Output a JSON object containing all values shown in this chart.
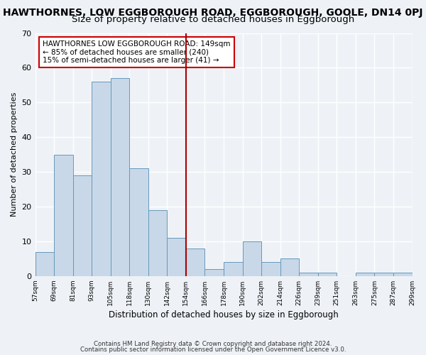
{
  "title": "HAWTHORNES, LOW EGGBOROUGH ROAD, EGGBOROUGH, GOOLE, DN14 0PJ",
  "subtitle": "Size of property relative to detached houses in Eggborough",
  "xlabel": "Distribution of detached houses by size in Eggborough",
  "ylabel": "Number of detached properties",
  "bar_color": "#c8d8e8",
  "bar_edge_color": "#6699bb",
  "vline_color": "#aa0000",
  "vline_pos": 7.5,
  "bin_labels": [
    "57sqm",
    "69sqm",
    "81sqm",
    "93sqm",
    "105sqm",
    "118sqm",
    "130sqm",
    "142sqm",
    "154sqm",
    "166sqm",
    "178sqm",
    "190sqm",
    "202sqm",
    "214sqm",
    "226sqm",
    "239sqm",
    "251sqm",
    "263sqm",
    "275sqm",
    "287sqm",
    "299sqm"
  ],
  "bar_heights": [
    7,
    35,
    29,
    56,
    57,
    31,
    19,
    11,
    8,
    2,
    4,
    10,
    4,
    5,
    1,
    1,
    0,
    1,
    1,
    1
  ],
  "ylim": [
    0,
    70
  ],
  "yticks": [
    0,
    10,
    20,
    30,
    40,
    50,
    60,
    70
  ],
  "annotation_text": "HAWTHORNES LOW EGGBOROUGH ROAD: 149sqm\n← 85% of detached houses are smaller (240)\n15% of semi-detached houses are larger (41) →",
  "footnote1": "Contains HM Land Registry data © Crown copyright and database right 2024.",
  "footnote2": "Contains public sector information licensed under the Open Government Licence v3.0.",
  "background_color": "#eef2f7",
  "grid_color": "#ffffff",
  "title_fontsize": 10,
  "subtitle_fontsize": 9.5
}
